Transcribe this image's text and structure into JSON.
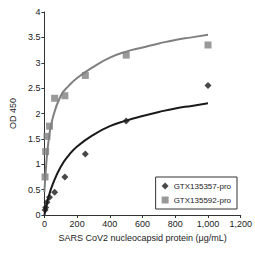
{
  "chart_data": {
    "type": "scatter",
    "x_label": "SARS CoV2 nucleocapsid protein (μg/mL)",
    "y_label": "OD 450",
    "xlim": [
      0,
      1200
    ],
    "xticks": [
      0,
      200,
      400,
      600,
      800,
      1000,
      1200
    ],
    "ylim": [
      0,
      4
    ],
    "yticks": [
      0,
      0.5,
      1,
      1.5,
      2,
      2.5,
      3,
      3.5,
      4
    ],
    "grid": false,
    "legend": "lower right",
    "series": [
      {
        "name": "GTX135357-pro",
        "color": "#1a1a1a",
        "marker": "diamond",
        "line_style": "solid",
        "x": [
          3.9,
          7.8,
          15.6,
          31.25,
          62.5,
          125,
          250,
          500,
          1000
        ],
        "values": [
          0.1,
          0.15,
          0.25,
          0.35,
          0.45,
          0.75,
          1.2,
          1.85,
          2.55
        ],
        "fit_x": [
          0,
          10,
          25,
          50,
          100,
          150,
          200,
          300,
          400,
          500,
          600,
          700,
          800,
          900,
          1000
        ],
        "fit_values": [
          0,
          0.15,
          0.35,
          0.6,
          0.95,
          1.18,
          1.35,
          1.58,
          1.75,
          1.86,
          1.95,
          2.03,
          2.1,
          2.15,
          2.2
        ]
      },
      {
        "name": "GTX135592-pro",
        "color": "#808080",
        "marker": "square",
        "line_style": "solid",
        "x": [
          3.9,
          7.8,
          15.6,
          31.25,
          62.5,
          125,
          250,
          500,
          1000
        ],
        "values": [
          0.75,
          1.25,
          1.55,
          1.75,
          2.3,
          2.35,
          2.75,
          3.15,
          3.35
        ],
        "fit_x": [
          0,
          10,
          25,
          50,
          100,
          150,
          200,
          300,
          400,
          500,
          600,
          700,
          800,
          900,
          1000
        ],
        "fit_values": [
          0.45,
          0.95,
          1.45,
          1.9,
          2.35,
          2.55,
          2.7,
          2.92,
          3.1,
          3.22,
          3.3,
          3.38,
          3.45,
          3.5,
          3.55
        ]
      }
    ]
  }
}
